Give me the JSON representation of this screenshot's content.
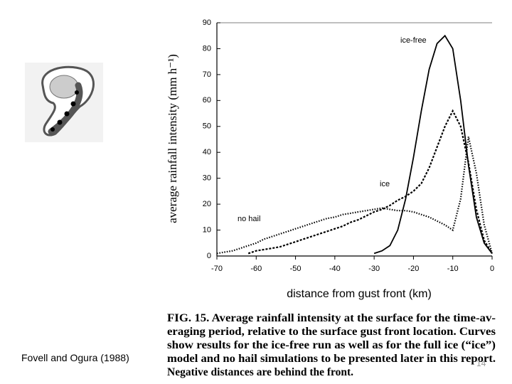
{
  "chart_data": {
    "type": "line",
    "x_label": "distance from gust front (km)",
    "y_label": "average rainfall intensity (mm h⁻¹)",
    "x": [
      -70,
      -68,
      -66,
      -64,
      -62,
      -60,
      -58,
      -56,
      -54,
      -52,
      -50,
      -48,
      -46,
      -44,
      -42,
      -40,
      -38,
      -36,
      -34,
      -32,
      -30,
      -28,
      -26,
      -24,
      -22,
      -20,
      -18,
      -16,
      -14,
      -12,
      -10,
      -8,
      -6,
      -4,
      -2,
      0
    ],
    "series": [
      {
        "name": "ice-free",
        "color": "#000000",
        "dash": "solid",
        "values": [
          null,
          null,
          null,
          null,
          null,
          null,
          null,
          null,
          null,
          null,
          null,
          null,
          null,
          null,
          null,
          null,
          null,
          null,
          null,
          null,
          1,
          2,
          4,
          10,
          22,
          38,
          56,
          72,
          82,
          85,
          80,
          60,
          35,
          15,
          5,
          1
        ]
      },
      {
        "name": "ice",
        "color": "#000000",
        "dash": "dashed",
        "values": [
          null,
          null,
          null,
          null,
          1,
          2,
          2.5,
          3,
          3.5,
          4.5,
          5.5,
          6.5,
          7.5,
          8.5,
          9.5,
          10.5,
          11.5,
          13,
          14,
          15.5,
          17,
          18,
          19.5,
          21.5,
          23,
          25,
          28,
          34,
          42,
          50,
          56,
          50,
          36,
          18,
          6,
          1
        ]
      },
      {
        "name": "no hail",
        "color": "#000000",
        "dash": "dotted",
        "values": [
          1,
          1.5,
          2,
          3,
          4,
          5,
          6.5,
          7.5,
          8.5,
          9.5,
          10.5,
          11.5,
          12.5,
          13.5,
          14.5,
          15,
          16,
          16.5,
          17,
          17.5,
          18,
          18.5,
          18,
          17.5,
          17.5,
          17,
          16,
          15,
          13.5,
          12,
          10,
          22,
          46,
          32,
          12,
          1
        ]
      }
    ],
    "xlim": [
      -70,
      0
    ],
    "xticks": [
      -70,
      -60,
      -50,
      -40,
      -30,
      -20,
      -10,
      0
    ],
    "ylim": [
      0,
      90
    ],
    "yticks": [
      0,
      10,
      20,
      30,
      40,
      50,
      60,
      70,
      80,
      90
    ],
    "grid": false
  },
  "caption": [
    "FIG. 15. Average rainfall intensity at the surface for the time-av-",
    "eraging period, relative to the surface gust front location. Curves",
    "show results for the ice-free run as well as for the full ice (“ice”)",
    "model and no hail simulations to be presented later in this report.",
    "Negative distances are behind the front."
  ],
  "citation": "Fovell and Ogura (1988)",
  "slide_number": "14"
}
